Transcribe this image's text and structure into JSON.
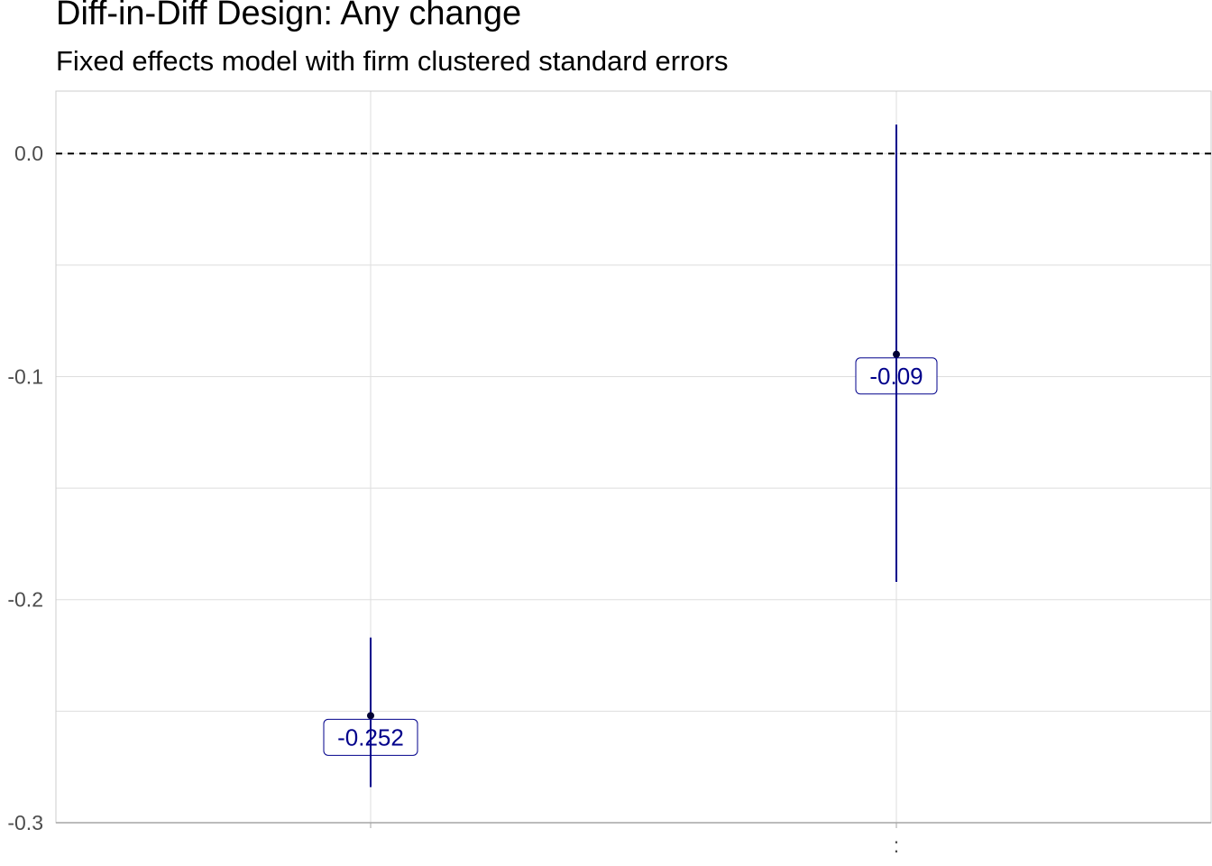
{
  "chart_data": {
    "type": "scatter",
    "title": "Diff-in-Diff Design: Any change",
    "subtitle": "Fixed effects model with firm clustered standard errors",
    "xlabel": "",
    "ylabel": "",
    "categories": [
      "",
      ":"
    ],
    "points": [
      {
        "category": "",
        "estimate": -0.252,
        "lower": -0.284,
        "upper": -0.217,
        "label": "-0.252"
      },
      {
        "category": ":",
        "estimate": -0.09,
        "lower": -0.192,
        "upper": 0.013,
        "label": "-0.09"
      }
    ],
    "ylim": [
      -0.3,
      0.028
    ],
    "yticks": [
      0.0,
      -0.1,
      -0.2,
      -0.3
    ],
    "ytick_labels": [
      "0.0",
      "-0.1",
      "-0.2",
      "-0.3"
    ],
    "ygrid_minor": [
      -0.05,
      -0.15,
      -0.25
    ],
    "reference_line": {
      "y": 0,
      "style": "dashed"
    },
    "grid": true,
    "legend": "none",
    "colors": {
      "series": "#00008b",
      "grid": "#dedede",
      "reference": "#000000",
      "axis": "#a6a6a6"
    }
  }
}
